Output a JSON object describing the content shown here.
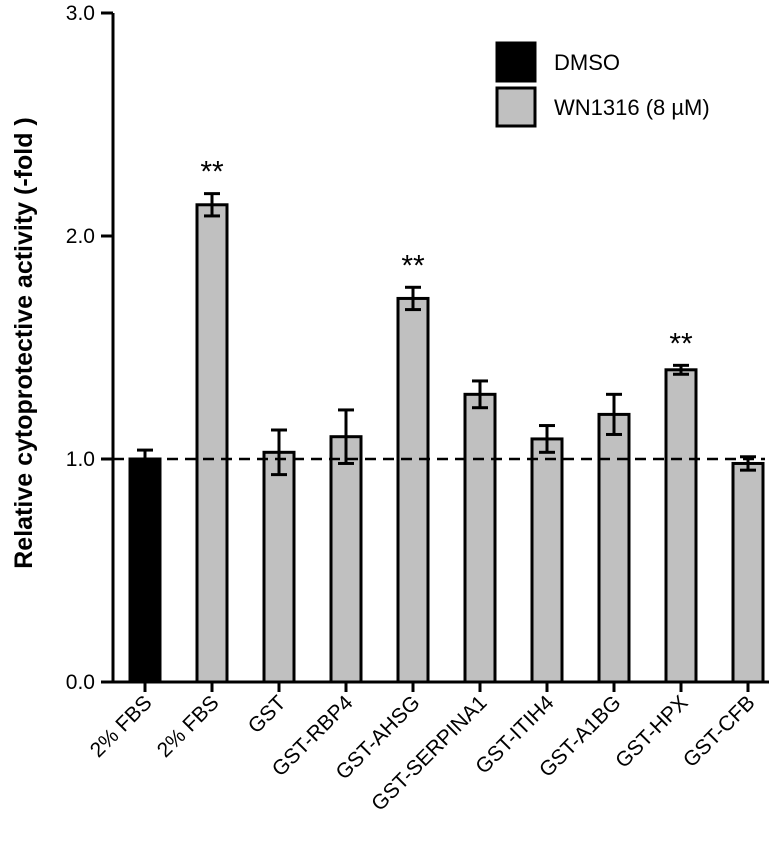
{
  "chart_data": {
    "type": "bar",
    "title": "",
    "xlabel": "",
    "ylabel": "Relative cytoprotective activity (-fold )",
    "ylim": [
      0,
      3.0
    ],
    "yticks": [
      0.0,
      1.0,
      2.0,
      3.0
    ],
    "ytick_labels": [
      "0.0",
      "1.0",
      "2.0",
      "3.0"
    ],
    "reference_line": 1.0,
    "categories": [
      "2% FBS",
      "2% FBS",
      "GST",
      "GST-RBP4",
      "GST-AHSG",
      "GST-SERPINA1",
      "GST-ITIH4",
      "GST-A1BG",
      "GST-HPX",
      "GST-CFB"
    ],
    "values": [
      1.0,
      2.14,
      1.03,
      1.1,
      1.72,
      1.29,
      1.09,
      1.2,
      1.4,
      0.98
    ],
    "errors": [
      0.04,
      0.05,
      0.1,
      0.12,
      0.05,
      0.06,
      0.06,
      0.09,
      0.02,
      0.03
    ],
    "groups": [
      "DMSO",
      "WN1316 (8 µM)",
      "WN1316 (8 µM)",
      "WN1316 (8 µM)",
      "WN1316 (8 µM)",
      "WN1316 (8 µM)",
      "WN1316 (8 µM)",
      "WN1316 (8 µM)",
      "WN1316 (8 µM)",
      "WN1316 (8 µM)"
    ],
    "significance": [
      "",
      "**",
      "",
      "",
      "**",
      "",
      "",
      "",
      "**",
      ""
    ],
    "legend": [
      {
        "name": "DMSO",
        "color": "#000000"
      },
      {
        "name": "WN1316 (8 µM)",
        "color": "#c0c0c0"
      }
    ],
    "legend_position": "top-right"
  }
}
